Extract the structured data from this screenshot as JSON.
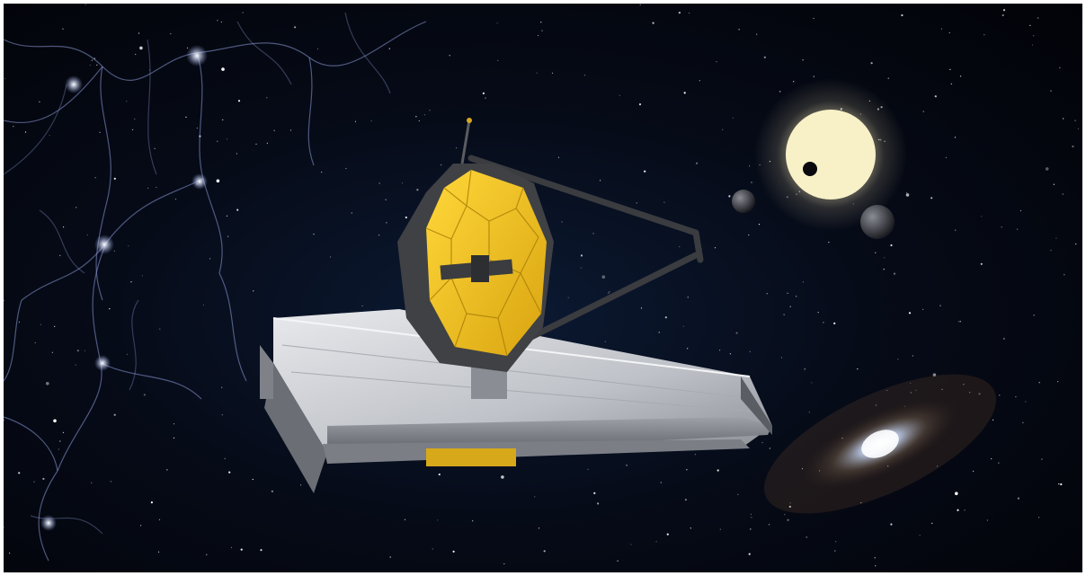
{
  "scene": {
    "subject": "space-telescope",
    "elements": [
      "cosmic-web",
      "star-field",
      "host-star",
      "transiting-planet",
      "exoplanets",
      "spiral-galaxy",
      "sunshield",
      "primary-mirror",
      "secondary-mirror-boom"
    ],
    "colors": {
      "space": "#03050c",
      "mirror_gold": "#f2c21b",
      "sunshield_silver": "#c9cbcf",
      "star_glow": "#fff6d0",
      "web_filament": "#8c9ad8"
    }
  }
}
